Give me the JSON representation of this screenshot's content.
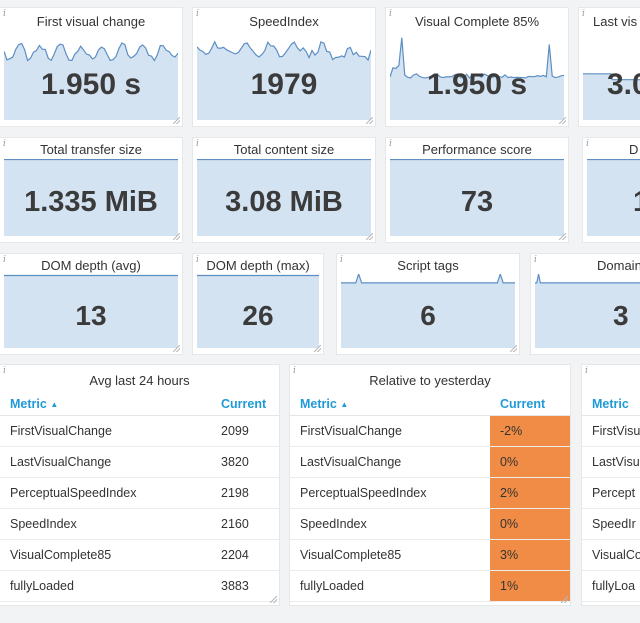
{
  "tiles": [
    {
      "title": "First visual change",
      "value": "1.950 s"
    },
    {
      "title": "SpeedIndex",
      "value": "1979"
    },
    {
      "title": "Visual Complete 85%",
      "value": "1.950 s"
    },
    {
      "title": "Last vis",
      "value": "3.0"
    },
    {
      "title": "Total transfer size",
      "value": "1.335 MiB"
    },
    {
      "title": "Total content size",
      "value": "3.08 MiB"
    },
    {
      "title": "Performance score",
      "value": "73"
    },
    {
      "title": "D",
      "value": "1"
    },
    {
      "title": "DOM depth (avg)",
      "value": "13"
    },
    {
      "title": "DOM depth (max)",
      "value": "26"
    },
    {
      "title": "Script tags",
      "value": "6"
    },
    {
      "title": "Domain",
      "value": "3"
    }
  ],
  "tables": [
    {
      "title": "Avg last 24 hours",
      "col_metric": "Metric",
      "col_current": "Current",
      "rows": [
        [
          "FirstVisualChange",
          "2099"
        ],
        [
          "LastVisualChange",
          "3820"
        ],
        [
          "PerceptualSpeedIndex",
          "2198"
        ],
        [
          "SpeedIndex",
          "2160"
        ],
        [
          "VisualComplete85",
          "2204"
        ],
        [
          "fullyLoaded",
          "3883"
        ]
      ]
    },
    {
      "title": "Relative to yesterday",
      "col_metric": "Metric",
      "col_current": "Current",
      "rows": [
        [
          "FirstVisualChange",
          "-2%"
        ],
        [
          "LastVisualChange",
          "0%"
        ],
        [
          "PerceptualSpeedIndex",
          "2%"
        ],
        [
          "SpeedIndex",
          "0%"
        ],
        [
          "VisualComplete85",
          "3%"
        ],
        [
          "fullyLoaded",
          "1%"
        ]
      ]
    },
    {
      "title": "",
      "col_metric": "Metric",
      "col_current": "",
      "rows": [
        [
          "FirstVisu",
          ""
        ],
        [
          "LastVisu",
          ""
        ],
        [
          "Percept",
          ""
        ],
        [
          "SpeedIr",
          ""
        ],
        [
          "VisualCo",
          ""
        ],
        [
          "fullyLoa",
          ""
        ]
      ]
    }
  ],
  "icons": {
    "info": "i",
    "sort": "▲"
  },
  "colors": {
    "spark_fill": "#d4e3f2",
    "spark_line": "#5d8fc3",
    "badge": "#f08c45",
    "header": "#1f9ad6"
  }
}
